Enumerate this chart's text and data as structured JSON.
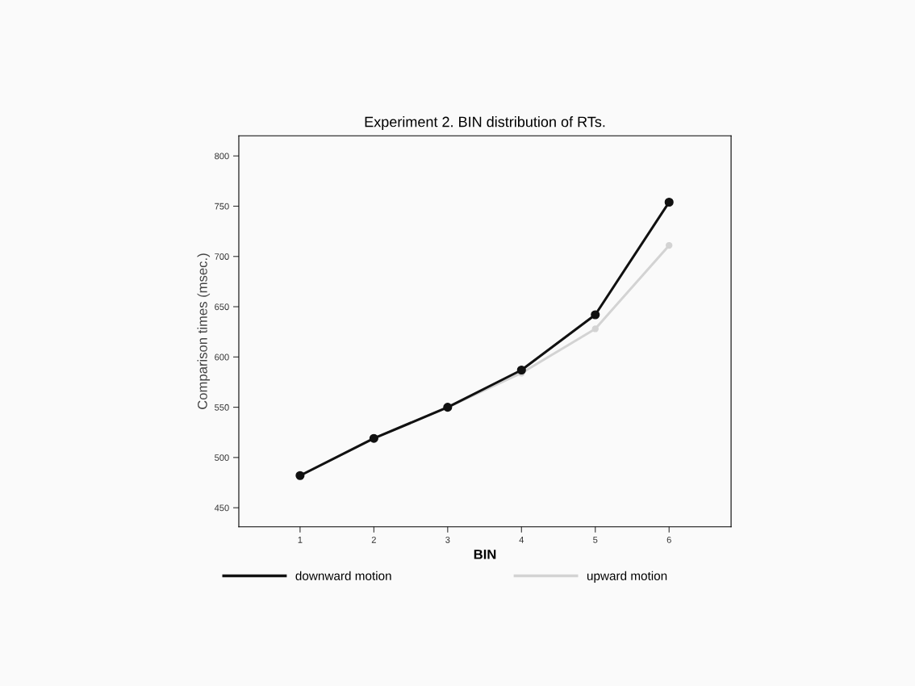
{
  "chart_data": {
    "type": "line",
    "title": "Experiment 2. BIN distribution of RTs.",
    "xlabel": "BIN",
    "ylabel": "Comparison times (msec.)",
    "categories": [
      "1",
      "2",
      "3",
      "4",
      "5",
      "6"
    ],
    "series": [
      {
        "name": "downward motion",
        "color": "#111111",
        "values": [
          482,
          519,
          550,
          587,
          642,
          754
        ]
      },
      {
        "name": "upward motion",
        "color": "#d3d3d3",
        "values": [
          482,
          519,
          550,
          584,
          628,
          711
        ]
      }
    ],
    "ylim": [
      431,
      820
    ],
    "yticks": [
      450,
      500,
      550,
      600,
      650,
      700,
      750,
      800
    ],
    "marker": "circle",
    "grid": false,
    "legend": "bottom"
  }
}
